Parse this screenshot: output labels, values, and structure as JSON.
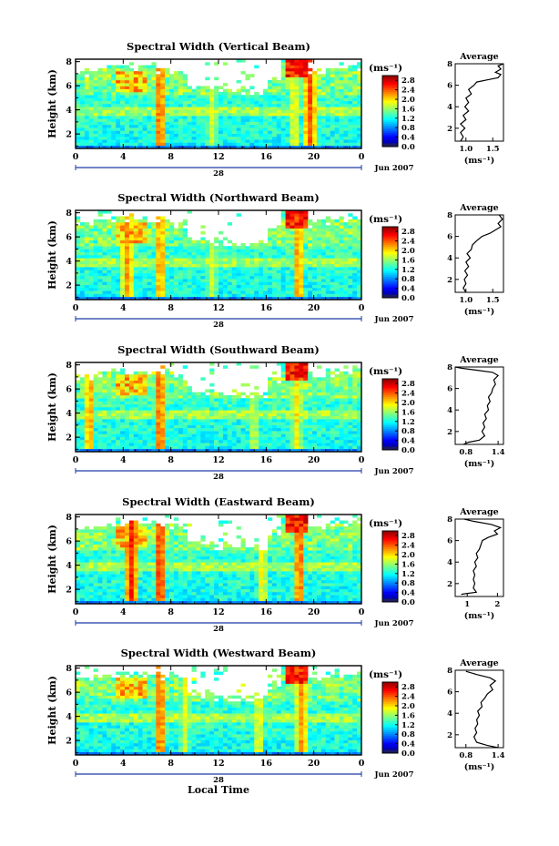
{
  "chart_data": [
    {
      "type": "heatmap",
      "title": "Spectral Width (Vertical Beam)",
      "ylabel": "Height (km)",
      "x_ticks": [
        "0",
        "4",
        "8",
        "12",
        "16",
        "20",
        "0"
      ],
      "y_ticks": [
        "2",
        "4",
        "6",
        "8"
      ],
      "day_label": "28",
      "date_label": "Jun 2007",
      "colorbar": {
        "unit": "(ms⁻¹)",
        "ticks": [
          "0.0",
          "0.4",
          "0.8",
          "1.2",
          "1.6",
          "2.0",
          "2.4",
          "2.8"
        ],
        "range": [
          0.0,
          3.0
        ]
      },
      "average": {
        "title": "Average",
        "xlabel": "(ms⁻¹)",
        "x_ticks": [
          "1.0",
          "1.5"
        ],
        "xlim": [
          0.8,
          1.7
        ],
        "y_ticks": [
          "2",
          "4",
          "6",
          "8"
        ],
        "profile": [
          [
            0.9,
            0.8
          ],
          [
            0.95,
            1.2
          ],
          [
            0.9,
            1.6
          ],
          [
            0.98,
            2.0
          ],
          [
            0.9,
            2.4
          ],
          [
            1.0,
            2.8
          ],
          [
            0.95,
            3.2
          ],
          [
            1.05,
            3.6
          ],
          [
            0.98,
            4.0
          ],
          [
            1.05,
            4.4
          ],
          [
            1.0,
            4.8
          ],
          [
            1.1,
            5.2
          ],
          [
            1.05,
            5.6
          ],
          [
            1.15,
            6.0
          ],
          [
            1.2,
            6.3
          ],
          [
            1.4,
            6.5
          ],
          [
            1.6,
            6.7
          ],
          [
            1.65,
            7.0
          ],
          [
            1.55,
            7.2
          ],
          [
            1.65,
            7.5
          ],
          [
            1.6,
            7.8
          ],
          [
            1.7,
            8.0
          ]
        ]
      }
    },
    {
      "type": "heatmap",
      "title": "Spectral Width (Northward Beam)",
      "ylabel": "Height (km)",
      "x_ticks": [
        "0",
        "4",
        "8",
        "12",
        "16",
        "20",
        "0"
      ],
      "y_ticks": [
        "2",
        "4",
        "6",
        "8"
      ],
      "day_label": "28",
      "date_label": "Jun 2007",
      "colorbar": {
        "unit": "(ms⁻¹)",
        "ticks": [
          "0.0",
          "0.4",
          "0.8",
          "1.2",
          "1.6",
          "2.0",
          "2.4",
          "2.8"
        ],
        "range": [
          0.0,
          3.0
        ]
      },
      "average": {
        "title": "Average",
        "xlabel": "(ms⁻¹)",
        "x_ticks": [
          "1.0",
          "1.5"
        ],
        "xlim": [
          0.8,
          1.7
        ],
        "y_ticks": [
          "2",
          "4",
          "6",
          "8"
        ],
        "profile": [
          [
            1.0,
            0.8
          ],
          [
            0.95,
            1.2
          ],
          [
            1.0,
            1.6
          ],
          [
            0.97,
            2.0
          ],
          [
            1.03,
            2.4
          ],
          [
            0.98,
            2.8
          ],
          [
            1.05,
            3.2
          ],
          [
            1.0,
            3.6
          ],
          [
            1.08,
            4.0
          ],
          [
            1.02,
            4.4
          ],
          [
            1.1,
            4.8
          ],
          [
            1.12,
            5.2
          ],
          [
            1.2,
            5.6
          ],
          [
            1.3,
            6.0
          ],
          [
            1.45,
            6.3
          ],
          [
            1.55,
            6.6
          ],
          [
            1.65,
            6.9
          ],
          [
            1.6,
            7.2
          ],
          [
            1.68,
            7.6
          ],
          [
            1.62,
            8.0
          ]
        ]
      }
    },
    {
      "type": "heatmap",
      "title": "Spectral Width (Southward Beam)",
      "ylabel": "Height (km)",
      "x_ticks": [
        "0",
        "4",
        "8",
        "12",
        "16",
        "20",
        "0"
      ],
      "y_ticks": [
        "2",
        "4",
        "6",
        "8"
      ],
      "day_label": "28",
      "date_label": "Jun 2007",
      "colorbar": {
        "unit": "(ms⁻¹)",
        "ticks": [
          "0.0",
          "0.4",
          "0.8",
          "1.2",
          "1.6",
          "2.0",
          "2.4",
          "2.8"
        ],
        "range": [
          0.0,
          3.0
        ]
      },
      "average": {
        "title": "Average",
        "xlabel": "(ms⁻¹)",
        "x_ticks": [
          "0.8",
          "1.4"
        ],
        "xlim": [
          0.6,
          1.5
        ],
        "y_ticks": [
          "2",
          "4",
          "6",
          "8"
        ],
        "profile": [
          [
            0.75,
            0.8
          ],
          [
            0.85,
            1.0
          ],
          [
            1.05,
            1.2
          ],
          [
            1.15,
            1.6
          ],
          [
            1.1,
            2.0
          ],
          [
            1.15,
            2.4
          ],
          [
            1.12,
            2.8
          ],
          [
            1.18,
            3.2
          ],
          [
            1.15,
            3.6
          ],
          [
            1.22,
            4.0
          ],
          [
            1.2,
            4.4
          ],
          [
            1.25,
            4.8
          ],
          [
            1.22,
            5.2
          ],
          [
            1.28,
            5.6
          ],
          [
            1.3,
            6.0
          ],
          [
            1.35,
            6.4
          ],
          [
            1.32,
            6.8
          ],
          [
            1.4,
            7.2
          ],
          [
            1.3,
            7.5
          ],
          [
            1.0,
            7.7
          ],
          [
            0.7,
            7.9
          ],
          [
            0.6,
            8.0
          ]
        ]
      }
    },
    {
      "type": "heatmap",
      "title": "Spectral Width (Eastward Beam)",
      "ylabel": "Height (km)",
      "x_ticks": [
        "0",
        "4",
        "8",
        "12",
        "16",
        "20",
        "0"
      ],
      "y_ticks": [
        "2",
        "4",
        "6",
        "8"
      ],
      "day_label": "28",
      "date_label": "Jun 2007",
      "colorbar": {
        "unit": "(ms⁻¹)",
        "ticks": [
          "0.0",
          "0.4",
          "0.8",
          "1.2",
          "1.6",
          "2.0",
          "2.4",
          "2.8"
        ],
        "range": [
          0.0,
          3.0
        ]
      },
      "average": {
        "title": "Average",
        "xlabel": "(ms⁻¹)",
        "x_ticks": [
          "1",
          "2"
        ],
        "xlim": [
          0.6,
          2.2
        ],
        "y_ticks": [
          "2",
          "4",
          "6",
          "8"
        ],
        "profile": [
          [
            0.8,
            1.0
          ],
          [
            1.3,
            1.2
          ],
          [
            1.2,
            1.6
          ],
          [
            1.25,
            2.0
          ],
          [
            1.2,
            2.4
          ],
          [
            1.25,
            2.8
          ],
          [
            1.2,
            3.2
          ],
          [
            1.3,
            3.6
          ],
          [
            1.25,
            4.0
          ],
          [
            1.35,
            4.4
          ],
          [
            1.3,
            4.8
          ],
          [
            1.4,
            5.2
          ],
          [
            1.45,
            5.6
          ],
          [
            1.5,
            6.0
          ],
          [
            1.7,
            6.3
          ],
          [
            2.0,
            6.6
          ],
          [
            1.9,
            6.9
          ],
          [
            2.1,
            7.2
          ],
          [
            1.8,
            7.5
          ],
          [
            1.2,
            7.8
          ],
          [
            0.9,
            8.0
          ]
        ]
      }
    },
    {
      "type": "heatmap",
      "title": "Spectral Width (Westward Beam)",
      "ylabel": "Height (km)",
      "xlabel": "Local Time",
      "x_ticks": [
        "0",
        "4",
        "8",
        "12",
        "16",
        "20",
        "0"
      ],
      "y_ticks": [
        "2",
        "4",
        "6",
        "8"
      ],
      "day_label": "28",
      "date_label": "Jun 2007",
      "colorbar": {
        "unit": "(ms⁻¹)",
        "ticks": [
          "0.0",
          "0.4",
          "0.8",
          "1.2",
          "1.6",
          "2.0",
          "2.4",
          "2.8"
        ],
        "range": [
          0.0,
          3.0
        ]
      },
      "average": {
        "title": "Average",
        "xlabel": "(ms⁻¹)",
        "x_ticks": [
          "0.8",
          "1.4"
        ],
        "xlim": [
          0.6,
          1.5
        ],
        "y_ticks": [
          "2",
          "4",
          "6",
          "8"
        ],
        "profile": [
          [
            1.4,
            0.8
          ],
          [
            1.2,
            1.0
          ],
          [
            1.0,
            1.3
          ],
          [
            0.95,
            1.8
          ],
          [
            1.0,
            2.2
          ],
          [
            0.97,
            2.6
          ],
          [
            1.02,
            3.0
          ],
          [
            1.0,
            3.4
          ],
          [
            1.05,
            3.8
          ],
          [
            1.02,
            4.2
          ],
          [
            1.1,
            4.6
          ],
          [
            1.08,
            5.0
          ],
          [
            1.15,
            5.4
          ],
          [
            1.2,
            5.8
          ],
          [
            1.3,
            6.2
          ],
          [
            1.25,
            6.6
          ],
          [
            1.35,
            7.0
          ],
          [
            1.25,
            7.3
          ],
          [
            1.0,
            7.6
          ],
          [
            0.8,
            7.9
          ]
        ]
      }
    }
  ]
}
